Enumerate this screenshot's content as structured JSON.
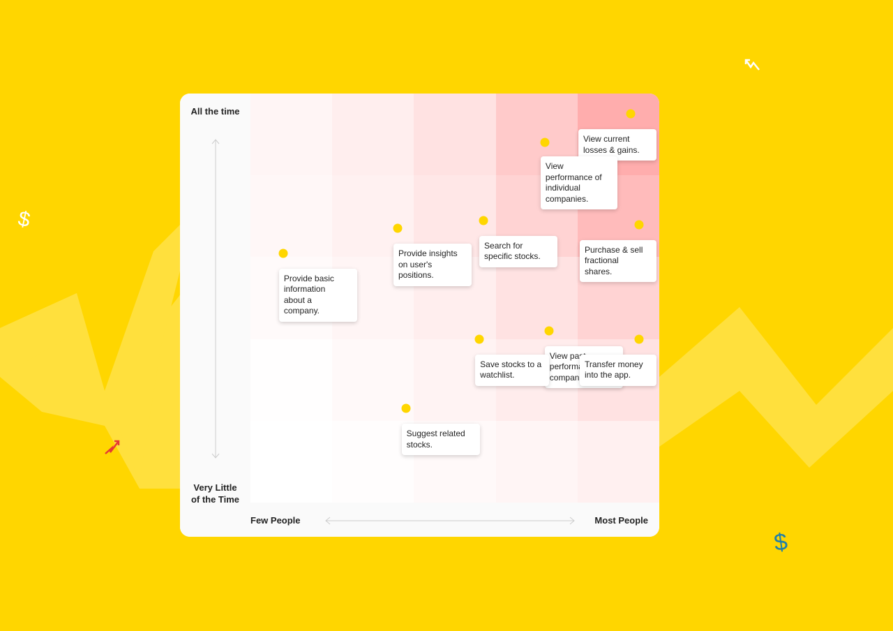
{
  "colors": {
    "background": "#FFD600",
    "zigzag": "#FFE03D",
    "dot": "#FFD600",
    "card": "#ffffff",
    "heat_max": "#FF9E9E"
  },
  "axes": {
    "y_top_label": "All the time",
    "y_bottom_label": "Very Little\nof the Time",
    "x_left_label": "Few People",
    "x_right_label": "Most People"
  },
  "heatmap": {
    "rows": 5,
    "cols": 5,
    "intensity": [
      [
        0.1,
        0.18,
        0.3,
        0.55,
        0.85
      ],
      [
        0.08,
        0.14,
        0.25,
        0.45,
        0.7
      ],
      [
        0.05,
        0.1,
        0.18,
        0.3,
        0.45
      ],
      [
        0.01,
        0.06,
        0.12,
        0.2,
        0.3
      ],
      [
        0.0,
        0.02,
        0.06,
        0.1,
        0.15
      ]
    ]
  },
  "features": [
    {
      "text": "View current\nlosses & gains.",
      "people": 0.93,
      "frequency": 0.95
    },
    {
      "text": "View\nperformance of\nindividual\ncompanies.",
      "people": 0.72,
      "frequency": 0.88
    },
    {
      "text": "Purchase & sell\nfractional\nshares.",
      "people": 0.95,
      "frequency": 0.68
    },
    {
      "text": "Search for\nspecific stocks.",
      "people": 0.57,
      "frequency": 0.69
    },
    {
      "text": "Provide insights\non user's\npositions.",
      "people": 0.36,
      "frequency": 0.67
    },
    {
      "text": "Provide basic\ninformation\nabout a\ncompany.",
      "people": 0.08,
      "frequency": 0.61
    },
    {
      "text": "View  past\nperformance of\ncompanies.",
      "people": 0.73,
      "frequency": 0.42
    },
    {
      "text": "Save stocks to a\nwatchlist.",
      "people": 0.56,
      "frequency": 0.4
    },
    {
      "text": "Transfer money\ninto the app.",
      "people": 0.95,
      "frequency": 0.4
    },
    {
      "text": "Suggest related\nstocks.",
      "people": 0.38,
      "frequency": 0.23
    }
  ],
  "decorations": [
    "dollar-sign-icon",
    "zigzag-arrow-icon"
  ]
}
